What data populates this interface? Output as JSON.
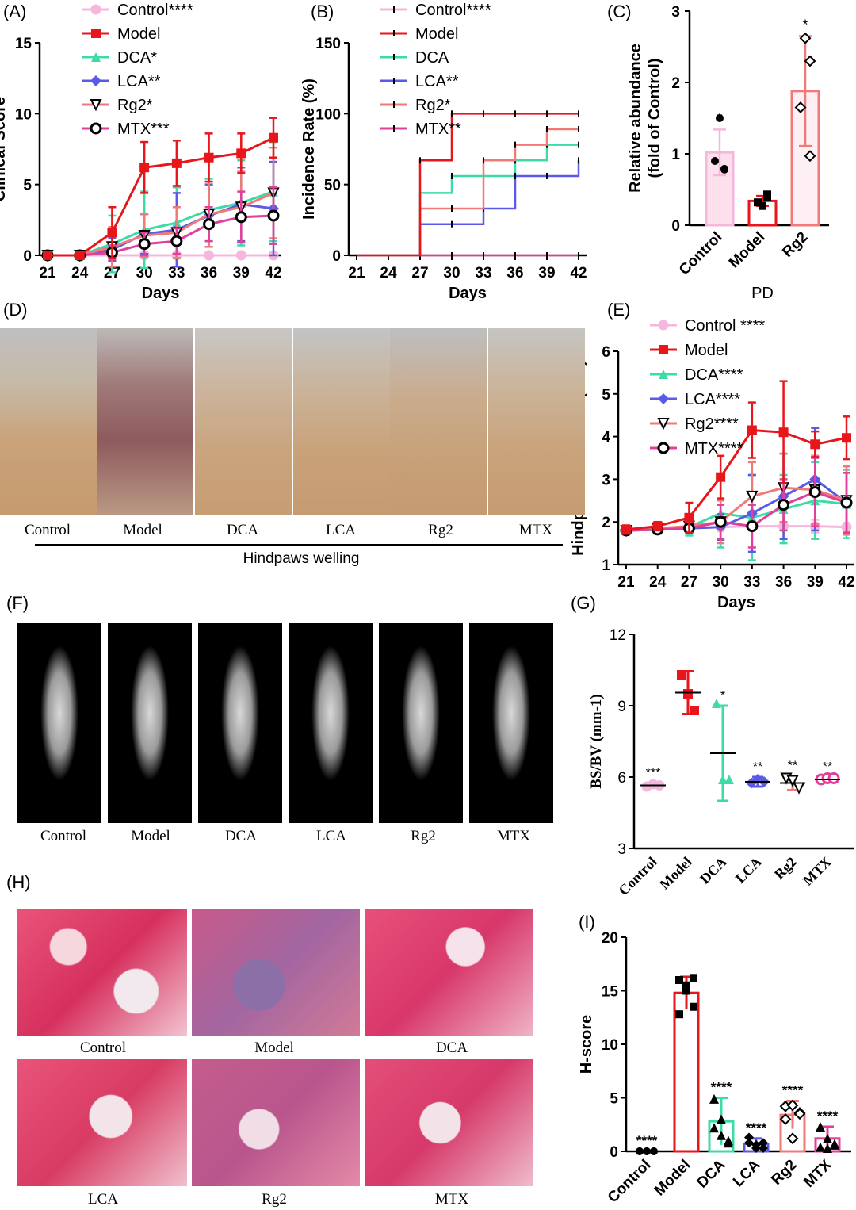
{
  "groups": [
    "Control",
    "Model",
    "DCA",
    "LCA",
    "Rg2",
    "MTX"
  ],
  "colors": {
    "Control": "#f5b8dc",
    "Model": "#e8161b",
    "DCA": "#3ddba6",
    "LCA": "#5a5ae6",
    "Rg2": "#f07a78",
    "MTX": "#e0409a"
  },
  "panel_labels": [
    "(A)",
    "(B)",
    "(C)",
    "(D)",
    "(E)",
    "(F)",
    "(G)",
    "(H)",
    "(I)"
  ],
  "captions": {
    "d": [
      "Control",
      "Model",
      "DCA",
      "LCA",
      "Rg2",
      "MTX"
    ],
    "d_footer": "Hindpaws welling",
    "f": [
      "Control",
      "Model",
      "DCA",
      "LCA",
      "Rg2",
      "MTX"
    ],
    "h": [
      "Control",
      "Model",
      "DCA",
      "LCA",
      "Rg2",
      "MTX"
    ]
  },
  "chart_data": [
    {
      "id": "A",
      "type": "line",
      "xlabel": "Days",
      "ylabel": "Clinical Score",
      "x": [
        21,
        24,
        27,
        30,
        33,
        36,
        39,
        42
      ],
      "ylim": [
        0,
        15
      ],
      "yticks": [
        0,
        5,
        10,
        15
      ],
      "legend": [
        "Control****",
        "Model",
        "DCA*",
        "LCA**",
        "Rg2*",
        "MTX***"
      ],
      "series": [
        {
          "name": "Control",
          "values": [
            0,
            0,
            0,
            0,
            0,
            0,
            0,
            0
          ],
          "err": [
            0,
            0,
            0,
            0,
            0,
            0,
            0,
            0
          ]
        },
        {
          "name": "Model",
          "values": [
            0,
            0,
            1.6,
            6.2,
            6.5,
            6.9,
            7.2,
            8.3
          ],
          "err": [
            0,
            0,
            1.8,
            1.8,
            1.6,
            1.7,
            1.4,
            1.4
          ]
        },
        {
          "name": "DCA",
          "values": [
            0,
            0,
            0.8,
            1.8,
            2.3,
            3.2,
            3.7,
            4.5
          ],
          "err": [
            0,
            0,
            2.0,
            2.7,
            2.5,
            2.2,
            3.0,
            3.5
          ]
        },
        {
          "name": "LCA",
          "values": [
            0,
            0,
            0.4,
            1.5,
            1.8,
            2.8,
            3.6,
            3.3
          ],
          "err": [
            0,
            0,
            0.8,
            1.4,
            2.6,
            2.2,
            2.6,
            3.3
          ]
        },
        {
          "name": "Rg2",
          "values": [
            0,
            0,
            0.6,
            1.4,
            1.6,
            2.9,
            3.4,
            4.4
          ],
          "err": [
            0,
            0,
            1.4,
            1.5,
            1.8,
            2.3,
            2.5,
            3.2
          ]
        },
        {
          "name": "MTX",
          "values": [
            0,
            0,
            0.2,
            0.8,
            1.0,
            2.2,
            2.7,
            2.8
          ],
          "err": [
            0,
            0,
            0.5,
            0.8,
            0.9,
            1.2,
            1.8,
            2.0
          ]
        }
      ]
    },
    {
      "id": "B",
      "type": "line",
      "xlabel": "Days",
      "ylabel": "Incidence Rate (%)",
      "x": [
        21,
        24,
        27,
        30,
        33,
        36,
        39,
        42
      ],
      "ylim": [
        0,
        150
      ],
      "yticks": [
        0,
        50,
        100,
        150
      ],
      "legend": [
        "Control****",
        "Model",
        "DCA",
        "LCA**",
        "Rg2*",
        "MTX**"
      ],
      "series": [
        {
          "name": "Control",
          "values": [
            0,
            0,
            0,
            0,
            0,
            0,
            0,
            0
          ]
        },
        {
          "name": "Model",
          "values": [
            0,
            0,
            67,
            100,
            100,
            100,
            100,
            100
          ]
        },
        {
          "name": "DCA",
          "values": [
            0,
            0,
            44,
            56,
            56,
            67,
            78,
            78
          ]
        },
        {
          "name": "LCA",
          "values": [
            0,
            0,
            22,
            22,
            33,
            56,
            56,
            67
          ]
        },
        {
          "name": "Rg2",
          "values": [
            0,
            0,
            33,
            33,
            67,
            78,
            89,
            89
          ]
        },
        {
          "name": "MTX",
          "values": [
            0,
            0,
            0,
            0,
            0,
            0,
            0,
            0
          ]
        }
      ]
    },
    {
      "id": "C",
      "type": "bar",
      "ylabel": "Relative abundance (fold of Control)",
      "xlabel": "PD",
      "categories": [
        "Control",
        "Model",
        "Rg2"
      ],
      "values": [
        1.02,
        0.34,
        1.88
      ],
      "err": [
        0.32,
        0.07,
        0.77
      ],
      "points": [
        [
          1.5,
          0.78,
          0.9,
          0.79
        ],
        [
          0.27,
          0.43,
          0.32,
          0.4
        ],
        [
          2.62,
          2.3,
          1.65,
          0.97
        ]
      ],
      "sig": [
        "*",
        "",
        "*"
      ],
      "ylim": [
        0,
        3
      ],
      "yticks": [
        0,
        1,
        2,
        3
      ]
    },
    {
      "id": "E",
      "type": "line",
      "xlabel": "Days",
      "ylabel": "Hindpaws thickness (mm)",
      "x": [
        21,
        24,
        27,
        30,
        33,
        36,
        39,
        42
      ],
      "ylim": [
        1,
        6
      ],
      "yticks": [
        1,
        2,
        3,
        4,
        5,
        6
      ],
      "legend": [
        "Control ****",
        "Model",
        "DCA****",
        "LCA****",
        "Rg2****",
        "MTX****"
      ],
      "series": [
        {
          "name": "Control",
          "values": [
            1.8,
            1.82,
            1.85,
            1.88,
            1.9,
            1.9,
            1.9,
            1.88
          ],
          "err": [
            0.05,
            0.05,
            0.08,
            0.1,
            0.1,
            0.1,
            0.15,
            0.1
          ]
        },
        {
          "name": "Model",
          "values": [
            1.82,
            1.9,
            2.1,
            3.05,
            4.15,
            4.1,
            3.82,
            3.97
          ],
          "err": [
            0.1,
            0.1,
            0.35,
            0.5,
            0.65,
            1.2,
            0.3,
            0.5
          ]
        },
        {
          "name": "DCA",
          "values": [
            1.8,
            1.82,
            1.88,
            2.2,
            2.1,
            2.3,
            2.5,
            2.42
          ],
          "err": [
            0.1,
            0.1,
            0.2,
            0.8,
            1.0,
            0.8,
            0.9,
            0.8
          ]
        },
        {
          "name": "LCA",
          "values": [
            1.8,
            1.82,
            1.85,
            1.88,
            2.2,
            2.6,
            3.0,
            2.45
          ],
          "err": [
            0.05,
            0.05,
            0.1,
            0.3,
            0.9,
            1.0,
            1.2,
            0.7
          ]
        },
        {
          "name": "Rg2",
          "values": [
            1.8,
            1.85,
            1.9,
            2.0,
            2.6,
            2.8,
            2.75,
            2.5
          ],
          "err": [
            0.05,
            0.05,
            0.1,
            0.5,
            0.8,
            0.8,
            0.8,
            0.8
          ]
        },
        {
          "name": "MTX",
          "values": [
            1.8,
            1.82,
            1.85,
            2.0,
            1.9,
            2.4,
            2.7,
            2.45
          ],
          "err": [
            0.05,
            0.05,
            0.1,
            0.4,
            0.5,
            0.6,
            0.8,
            0.7
          ]
        }
      ]
    },
    {
      "id": "G",
      "type": "scatter",
      "ylabel": "BS/BV (mm-1)",
      "categories": [
        "Control",
        "Model",
        "DCA",
        "LCA",
        "Rg2",
        "MTX"
      ],
      "means": [
        5.65,
        9.55,
        7.0,
        5.8,
        5.75,
        5.9
      ],
      "sd": [
        0.1,
        0.9,
        2.0,
        0.2,
        0.3,
        0.1
      ],
      "points": [
        [
          5.6,
          5.7,
          5.65
        ],
        [
          10.3,
          9.5,
          8.8
        ],
        [
          9.1,
          5.9,
          5.9
        ],
        [
          5.75,
          5.9,
          5.8
        ],
        [
          5.95,
          5.85,
          5.55
        ],
        [
          5.9,
          5.95,
          5.95
        ]
      ],
      "sig": [
        "***",
        "",
        "*",
        "**",
        "**",
        "**"
      ],
      "ylim": [
        3,
        12
      ],
      "yticks": [
        3,
        6,
        9,
        12
      ]
    },
    {
      "id": "I",
      "type": "bar",
      "ylabel": "H-score",
      "categories": [
        "Control",
        "Model",
        "DCA",
        "LCA",
        "Rg2",
        "MTX"
      ],
      "values": [
        0,
        14.8,
        2.8,
        0.7,
        3.4,
        1.2
      ],
      "err": [
        0,
        1.5,
        2.2,
        0.5,
        1.3,
        1.1
      ],
      "points": [
        [
          0,
          0,
          0,
          0,
          0,
          0
        ],
        [
          16,
          15.5,
          13.5,
          12.8,
          15.0,
          16.2
        ],
        [
          4.9,
          1.5,
          1,
          2.2,
          3,
          0.8
        ],
        [
          1.3,
          0.6,
          0.3,
          0.8,
          0.3,
          0.8
        ],
        [
          4.2,
          4.3,
          3.6,
          3,
          1.2,
          3.5
        ],
        [
          2.3,
          1.2,
          0.7,
          0.4,
          0.3,
          0.6
        ]
      ],
      "sig": [
        "****",
        "",
        "****",
        "****",
        "****",
        "****"
      ],
      "ylim": [
        0,
        20
      ],
      "yticks": [
        0,
        5,
        10,
        15,
        20
      ]
    }
  ]
}
